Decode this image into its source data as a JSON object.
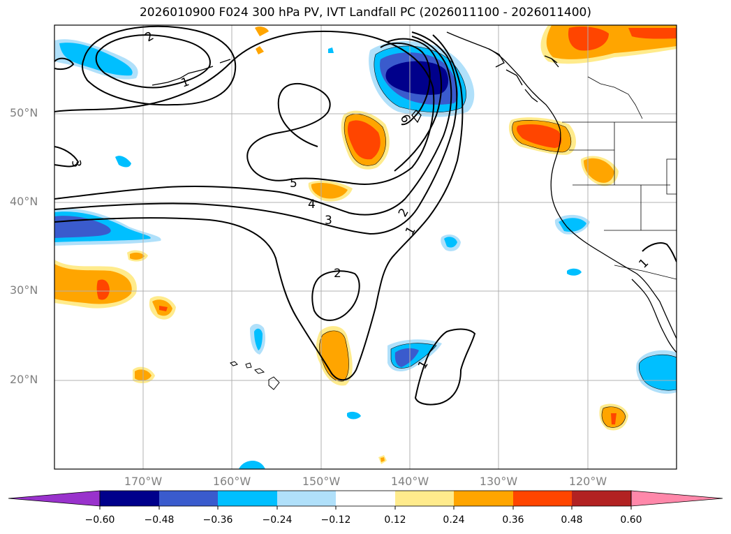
{
  "title": "2026010900 F024 300 hPa PV, IVT Landfall PC (2026011100 - 2026011400)",
  "lat_labels": [
    "50°N",
    "40°N",
    "30°N",
    "20°N"
  ],
  "lon_labels": [
    "170°W",
    "160°W",
    "150°W",
    "140°W",
    "130°W",
    "120°W"
  ],
  "contour_labels": [
    "2",
    "1",
    "6",
    "5",
    "4",
    "3",
    "2",
    "1",
    "2",
    "1",
    "3",
    "1"
  ],
  "colorbar": {
    "ticks": [
      "−0.60",
      "−0.48",
      "−0.36",
      "−0.24",
      "−0.12",
      "0.12",
      "0.24",
      "0.36",
      "0.48",
      "0.60"
    ],
    "colors": [
      "#9932cc",
      "#00008b",
      "#3a5bcd",
      "#00bfff",
      "#b0e0fa",
      "#ffffff",
      "#ffeb8c",
      "#ffa500",
      "#ff4500",
      "#b22222",
      "#ff88aa"
    ]
  },
  "colors": {
    "neg_strong": "#00008b",
    "neg_mid": "#3a5bcd",
    "neg": "#00bfff",
    "neg_light": "#b0e0fa",
    "pos_light": "#ffeb8c",
    "pos": "#ffa500",
    "pos_mid": "#ff4500"
  }
}
